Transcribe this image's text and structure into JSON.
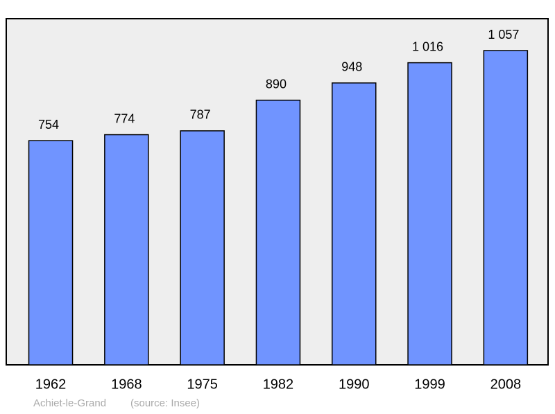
{
  "chart_data": {
    "type": "bar",
    "categories": [
      "1962",
      "1968",
      "1975",
      "1982",
      "1990",
      "1999",
      "2008"
    ],
    "values": [
      754,
      774,
      787,
      890,
      948,
      1016,
      1057
    ],
    "value_labels": [
      "754",
      "774",
      "787",
      "890",
      "948",
      "1 016",
      "1 057"
    ],
    "color": "#7094ff",
    "place": "Achiet-le-Grand",
    "source": "(source: Insee)"
  }
}
